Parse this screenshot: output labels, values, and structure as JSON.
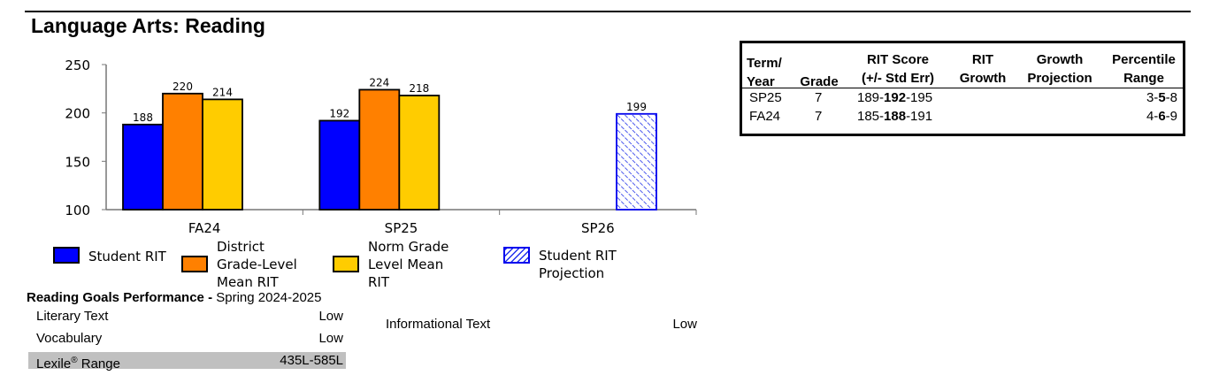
{
  "title": "Language Arts: Reading",
  "chart_data": {
    "type": "bar",
    "categories": [
      "FA24",
      "SP25",
      "SP26"
    ],
    "ylim": [
      100,
      250
    ],
    "yticks": [
      100,
      150,
      200,
      250
    ],
    "series": [
      {
        "name": "Student RIT",
        "values": [
          188,
          192,
          null
        ],
        "color": "#0000ff",
        "pattern": "solid"
      },
      {
        "name": "District Grade-Level Mean RIT",
        "values": [
          220,
          224,
          null
        ],
        "color": "#ff8000",
        "pattern": "solid"
      },
      {
        "name": "Norm Grade Level Mean RIT",
        "values": [
          214,
          218,
          null
        ],
        "color": "#ffcc00",
        "pattern": "solid"
      },
      {
        "name": "Student RIT Projection",
        "values": [
          null,
          null,
          199
        ],
        "color": "#0000ee",
        "pattern": "hatched"
      }
    ],
    "legend_position": "bottom",
    "grid": false
  },
  "legend": [
    {
      "label": "Student RIT",
      "color": "#0000ff"
    },
    {
      "label": "District Grade-Level Mean RIT",
      "color": "#ff8000"
    },
    {
      "label": "Norm Grade Level Mean RIT",
      "color": "#ffcc00"
    },
    {
      "label": "Student RIT Projection",
      "color": "#0000ee"
    }
  ],
  "rit_table": {
    "headers": {
      "term": [
        "Term/",
        "Year"
      ],
      "grade": [
        "",
        "Grade"
      ],
      "score": [
        "RIT Score",
        "(+/- Std Err)"
      ],
      "growth": [
        "RIT",
        "Growth"
      ],
      "projection": [
        "Growth",
        "Projection"
      ],
      "percentile": [
        "Percentile",
        "Range"
      ]
    },
    "rows": [
      {
        "term": "SP25",
        "grade": "7",
        "score_low": "189-",
        "score": "192",
        "score_high": "-195",
        "pct_low": "3-",
        "pct": "5",
        "pct_high": "-8"
      },
      {
        "term": "FA24",
        "grade": "7",
        "score_low": "185-",
        "score": "188",
        "score_high": "-191",
        "pct_low": "4-",
        "pct": "6",
        "pct_high": "-9"
      }
    ]
  },
  "goals": {
    "title_bold": "Reading Goals Performance -",
    "title_rest": " Spring 2024-2025",
    "items": [
      {
        "name": "Literary Text",
        "value": "Low"
      },
      {
        "name": "Vocabulary",
        "value": "Low"
      },
      {
        "name": "Informational Text",
        "value": "Low"
      }
    ],
    "lexile_label": "Lexile",
    "lexile_mark": "®",
    "lexile_label_rest": " Range",
    "lexile_value": "435L-585L"
  }
}
